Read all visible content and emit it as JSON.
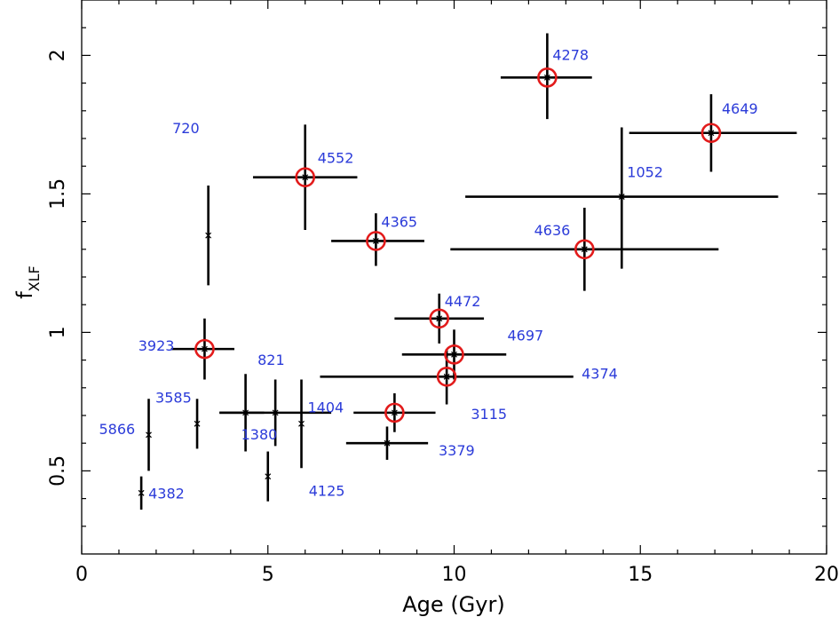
{
  "chart_data": {
    "type": "scatter",
    "title": "",
    "xlabel": "Age (Gyr)",
    "ylabel": "f",
    "ylabel_subscript": "XLF",
    "xlim": [
      0,
      20
    ],
    "ylim": [
      0.2,
      2.2
    ],
    "xticks": [
      0,
      5,
      10,
      15,
      20
    ],
    "xtick_labels": [
      "0",
      "5",
      "10",
      "15",
      "20"
    ],
    "yticks": [
      0.5,
      1,
      1.5,
      2
    ],
    "ytick_labels": [
      "0.5",
      "1",
      "1.5",
      "2"
    ],
    "grid": false,
    "colors": {
      "label": "#2b3bd9",
      "circle": "#e21b1b",
      "errorbar": "#000000"
    },
    "points": [
      {
        "label": "4278",
        "x": 12.5,
        "y": 1.92,
        "xerr": [
          1.25,
          1.2
        ],
        "yerr": [
          0.15,
          0.16
        ],
        "circled": true
      },
      {
        "label": "4649",
        "x": 16.9,
        "y": 1.72,
        "xerr": [
          2.2,
          2.3
        ],
        "yerr": [
          0.14,
          0.14
        ],
        "circled": true
      },
      {
        "label": "4552",
        "x": 6.0,
        "y": 1.56,
        "xerr": [
          1.4,
          1.4
        ],
        "yerr": [
          0.19,
          0.19
        ],
        "circled": true
      },
      {
        "label": "1052",
        "x": 14.5,
        "y": 1.49,
        "xerr": [
          4.2,
          4.2
        ],
        "yerr": [
          0.26,
          0.25
        ],
        "circled": false
      },
      {
        "label": "720",
        "x": 3.4,
        "y": 1.35,
        "xerr": [
          0,
          0
        ],
        "yerr": [
          0.18,
          0.18
        ],
        "circled": false
      },
      {
        "label": "4365",
        "x": 7.9,
        "y": 1.33,
        "xerr": [
          1.2,
          1.3
        ],
        "yerr": [
          0.09,
          0.1
        ],
        "circled": true
      },
      {
        "label": "4636",
        "x": 13.5,
        "y": 1.3,
        "xerr": [
          3.6,
          3.6
        ],
        "yerr": [
          0.15,
          0.15
        ],
        "circled": true
      },
      {
        "label": "4472",
        "x": 9.6,
        "y": 1.05,
        "xerr": [
          1.2,
          1.2
        ],
        "yerr": [
          0.09,
          0.09
        ],
        "circled": true
      },
      {
        "label": "3923",
        "x": 3.3,
        "y": 0.94,
        "xerr": [
          0.9,
          0.8
        ],
        "yerr": [
          0.11,
          0.11
        ],
        "circled": true
      },
      {
        "label": "4697",
        "x": 10.0,
        "y": 0.92,
        "xerr": [
          1.4,
          1.4
        ],
        "yerr": [
          0.09,
          0.09
        ],
        "circled": true
      },
      {
        "label": "4374",
        "x": 9.8,
        "y": 0.84,
        "xerr": [
          3.4,
          3.4
        ],
        "yerr": [
          0.1,
          0.1
        ],
        "circled": true
      },
      {
        "label": "1380",
        "x": 4.4,
        "y": 0.71,
        "xerr": [
          0.7,
          0.5
        ],
        "yerr": [
          0.14,
          0.14
        ],
        "circled": false
      },
      {
        "label": "821",
        "x": 5.2,
        "y": 0.71,
        "xerr": [
          1.5,
          1.5
        ],
        "yerr": [
          0.12,
          0.12
        ],
        "circled": false
      },
      {
        "label": "1404",
        "x": 5.9,
        "y": 0.67,
        "xerr": [
          0,
          0
        ],
        "yerr": [
          0.16,
          0.16
        ],
        "circled": false
      },
      {
        "label": "3115",
        "x": 8.4,
        "y": 0.71,
        "xerr": [
          1.1,
          1.1
        ],
        "yerr": [
          0.07,
          0.07
        ],
        "circled": true
      },
      {
        "label": "3379",
        "x": 8.2,
        "y": 0.6,
        "xerr": [
          1.1,
          1.1
        ],
        "yerr": [
          0.06,
          0.06
        ],
        "circled": false
      },
      {
        "label": "3585",
        "x": 3.1,
        "y": 0.67,
        "xerr": [
          0,
          0
        ],
        "yerr": [
          0.09,
          0.09
        ],
        "circled": false
      },
      {
        "label": "5866",
        "x": 1.8,
        "y": 0.63,
        "xerr": [
          0,
          0
        ],
        "yerr": [
          0.13,
          0.13
        ],
        "circled": false
      },
      {
        "label": "4125",
        "x": 5.0,
        "y": 0.48,
        "xerr": [
          0,
          0
        ],
        "yerr": [
          0.09,
          0.09
        ],
        "circled": false
      },
      {
        "label": "4382",
        "x": 1.6,
        "y": 0.42,
        "xerr": [
          0,
          0
        ],
        "yerr": [
          0.06,
          0.06
        ],
        "circled": false
      }
    ]
  }
}
